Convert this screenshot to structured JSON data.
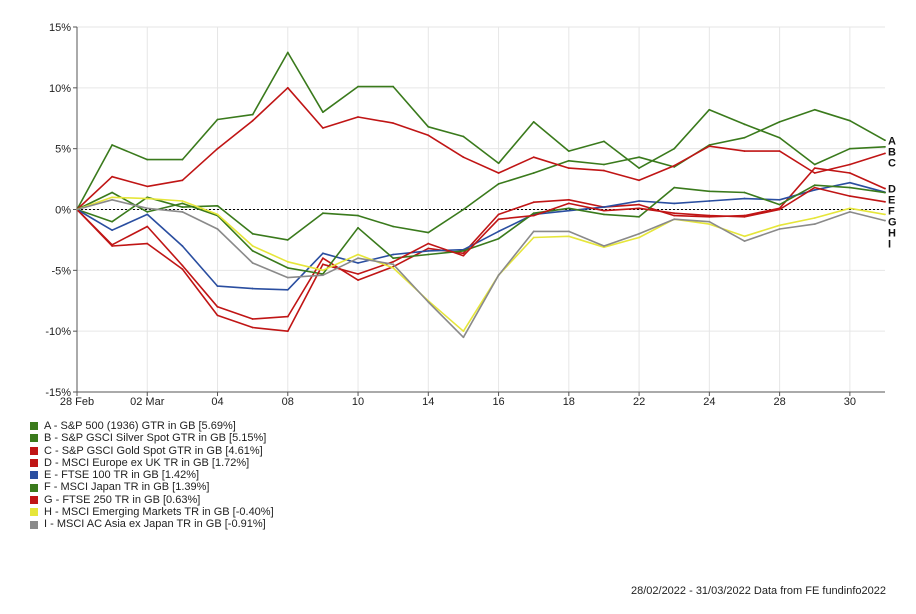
{
  "chart_data": {
    "type": "line",
    "x": [
      "28 Feb",
      "01 Mar",
      "02 Mar",
      "03 Mar",
      "04",
      "07",
      "08",
      "09",
      "10",
      "11",
      "14",
      "15",
      "16",
      "17",
      "18",
      "21",
      "22",
      "23",
      "24",
      "25",
      "28",
      "29",
      "30",
      "31"
    ],
    "xticks": [
      {
        "index": 0,
        "label": "28 Feb"
      },
      {
        "index": 2,
        "label": "02 Mar"
      },
      {
        "index": 4,
        "label": "04"
      },
      {
        "index": 6,
        "label": "08"
      },
      {
        "index": 8,
        "label": "10"
      },
      {
        "index": 10,
        "label": "14"
      },
      {
        "index": 12,
        "label": "16"
      },
      {
        "index": 14,
        "label": "18"
      },
      {
        "index": 16,
        "label": "22"
      },
      {
        "index": 18,
        "label": "24"
      },
      {
        "index": 20,
        "label": "28"
      },
      {
        "index": 22,
        "label": "30"
      }
    ],
    "yticks": [
      {
        "value": 15,
        "label": "15%"
      },
      {
        "value": 10,
        "label": "10%"
      },
      {
        "value": 5,
        "label": "5%"
      },
      {
        "value": 0,
        "label": "0%"
      },
      {
        "value": -5,
        "label": "-5%"
      },
      {
        "value": -10,
        "label": "-10%"
      },
      {
        "value": -15,
        "label": "-15%"
      }
    ],
    "ylim": [
      -15,
      15
    ],
    "grid": true,
    "series": [
      {
        "name": "A - S&P 500 (1936) GTR in GB [5.69%]",
        "end_label": "A",
        "color": "#3a7a1c",
        "values": [
          0,
          -1.0,
          1.0,
          0.2,
          0.3,
          -2.0,
          -2.5,
          -0.3,
          -0.5,
          -1.4,
          -1.9,
          0,
          2.1,
          3.0,
          4.0,
          3.7,
          4.3,
          3.5,
          5.3,
          5.9,
          7.2,
          8.2,
          7.3,
          5.69
        ]
      },
      {
        "name": "B - S&P GSCI Silver Spot GTR in GB [5.15%]",
        "end_label": "B",
        "color": "#3a7a1c",
        "values": [
          0,
          5.3,
          4.1,
          4.1,
          7.4,
          7.8,
          12.9,
          8.0,
          10.1,
          10.1,
          6.8,
          6.0,
          3.8,
          7.2,
          4.8,
          5.6,
          3.4,
          5.0,
          8.2,
          7.0,
          5.9,
          3.7,
          5.0,
          5.15
        ]
      },
      {
        "name": "C - S&P GSCI Gold Spot GTR in GB [4.61%]",
        "end_label": "C",
        "color": "#c01515",
        "values": [
          0,
          2.7,
          1.9,
          2.4,
          5.0,
          7.3,
          10.0,
          6.7,
          7.6,
          7.1,
          6.1,
          4.3,
          3.0,
          4.3,
          3.4,
          3.2,
          2.4,
          3.6,
          5.2,
          4.8,
          4.8,
          3.0,
          3.7,
          4.61
        ]
      },
      {
        "name": "D - MSCI Europe ex UK TR in GB [1.72%]",
        "end_label": "D",
        "color": "#c01515",
        "values": [
          0,
          -2.9,
          -1.4,
          -4.6,
          -8.0,
          -9.0,
          -8.8,
          -4.0,
          -5.8,
          -4.7,
          -3.2,
          -3.6,
          -0.4,
          0.6,
          0.8,
          0.2,
          0.4,
          -0.5,
          -0.6,
          -0.5,
          0.1,
          3.4,
          3.0,
          1.72
        ]
      },
      {
        "name": "E - FTSE 100 TR in GB [1.42%]",
        "end_label": "E",
        "color": "#2a4ea0",
        "values": [
          0,
          -1.7,
          -0.4,
          -3.0,
          -6.3,
          -6.5,
          -6.6,
          -3.6,
          -4.4,
          -3.7,
          -3.4,
          -3.3,
          -1.8,
          -0.4,
          -0.1,
          0.2,
          0.7,
          0.5,
          0.7,
          0.9,
          0.8,
          1.6,
          2.2,
          1.42
        ]
      },
      {
        "name": "F - MSCI Japan TR in GB [1.39%]",
        "end_label": "F",
        "color": "#3a7a1c",
        "values": [
          0,
          1.4,
          -0.2,
          0.5,
          -0.5,
          -3.4,
          -4.8,
          -5.3,
          -1.5,
          -4.0,
          -3.7,
          -3.4,
          -2.4,
          -0.3,
          0.1,
          -0.4,
          -0.6,
          1.8,
          1.5,
          1.4,
          0.4,
          2.0,
          1.8,
          1.39
        ]
      },
      {
        "name": "G - FTSE 250 TR in GB [0.63%]",
        "end_label": "G",
        "color": "#c01515",
        "values": [
          0,
          -3.0,
          -2.8,
          -4.9,
          -8.7,
          -9.7,
          -10.0,
          -4.5,
          -5.3,
          -4.3,
          -2.8,
          -3.8,
          -0.8,
          -0.5,
          0.5,
          -0.1,
          0.1,
          -0.3,
          -0.5,
          -0.6,
          0.0,
          1.8,
          1.1,
          0.63
        ]
      },
      {
        "name": "H - MSCI Emerging Markets TR in GB [-0.40%]",
        "end_label": "H",
        "color": "#e6e63a",
        "values": [
          0,
          1.0,
          0.9,
          0.7,
          -0.4,
          -3.0,
          -4.3,
          -5.0,
          -3.7,
          -4.8,
          -7.5,
          -10.0,
          -5.4,
          -2.3,
          -2.2,
          -3.1,
          -2.3,
          -0.8,
          -1.2,
          -2.2,
          -1.3,
          -0.7,
          0.1,
          -0.4
        ]
      },
      {
        "name": "I - MSCI AC Asia ex Japan TR in GB [-0.91%]",
        "end_label": "I",
        "color": "#8a8a8a",
        "values": [
          0,
          0.8,
          0.1,
          -0.2,
          -1.6,
          -4.4,
          -5.6,
          -5.4,
          -4.0,
          -4.5,
          -7.6,
          -10.5,
          -5.4,
          -1.8,
          -1.8,
          -3.0,
          -2.0,
          -0.8,
          -1.0,
          -2.6,
          -1.6,
          -1.2,
          -0.2,
          -0.91
        ]
      }
    ]
  },
  "footer": "28/02/2022 - 31/03/2022 Data from FE fundinfo2022"
}
